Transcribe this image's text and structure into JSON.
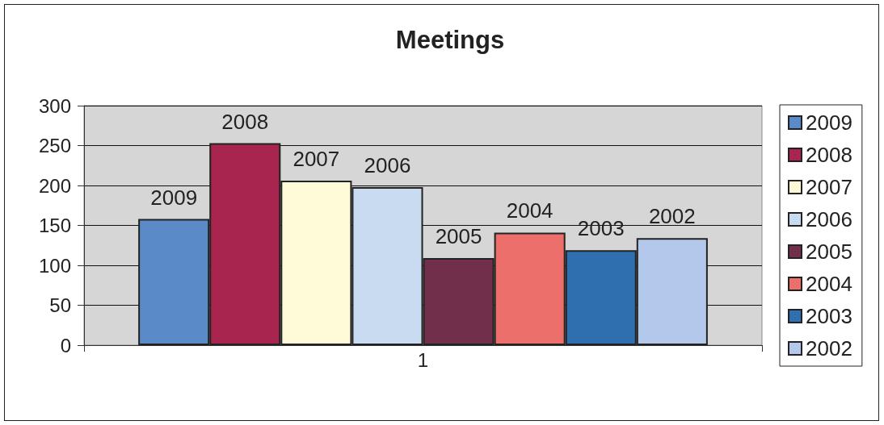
{
  "chart_data": {
    "type": "bar",
    "title": "Meetings",
    "categories": [
      "1"
    ],
    "series": [
      {
        "name": "2009",
        "color": "#5b8ac9",
        "values": [
          158
        ]
      },
      {
        "name": "2008",
        "color": "#a8254f",
        "values": [
          253
        ]
      },
      {
        "name": "2007",
        "color": "#fffbd8",
        "values": [
          206
        ]
      },
      {
        "name": "2006",
        "color": "#c8dbf0",
        "values": [
          198
        ]
      },
      {
        "name": "2005",
        "color": "#722f4b",
        "values": [
          109
        ]
      },
      {
        "name": "2004",
        "color": "#ec6f6c",
        "values": [
          141
        ]
      },
      {
        "name": "2003",
        "color": "#2f6fb0",
        "values": [
          119
        ]
      },
      {
        "name": "2002",
        "color": "#b3c8ea",
        "values": [
          134
        ]
      }
    ],
    "annotations": [
      "2009",
      "2008",
      "2007",
      "2006",
      "2005",
      "2004",
      "2003",
      "2002"
    ],
    "ylim": [
      0,
      300
    ],
    "yticks": [
      0,
      50,
      100,
      150,
      200,
      250,
      300
    ],
    "grid": "y",
    "legend": "right"
  }
}
